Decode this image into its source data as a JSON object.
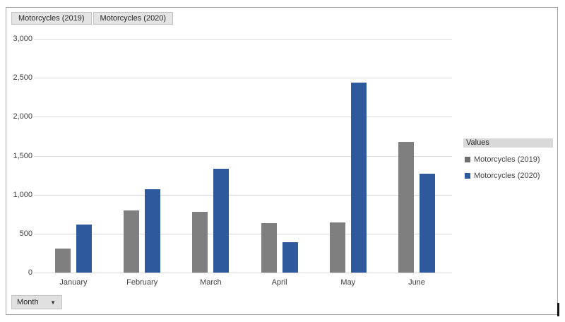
{
  "chart_data": {
    "type": "bar",
    "title": "",
    "categories": [
      "January",
      "February",
      "March",
      "April",
      "May",
      "June"
    ],
    "series": [
      {
        "name": "Motorcycles (2019)",
        "color": "#7f7f7f",
        "values": [
          310,
          800,
          780,
          630,
          640,
          1680
        ]
      },
      {
        "name": "Motorcycles (2020)",
        "color": "#2e5a9d",
        "values": [
          620,
          1070,
          1330,
          390,
          2440,
          1270
        ]
      }
    ],
    "xlabel": "",
    "ylabel": "",
    "ylim": [
      0,
      3000
    ],
    "ytick_step": 500,
    "ytick_labels": [
      "0",
      "500",
      "1,000",
      "1,500",
      "2,000",
      "2,500",
      "3,000"
    ],
    "grid": true,
    "legend_position": "right"
  },
  "field_buttons": [
    {
      "label": "Motorcycles (2019)"
    },
    {
      "label": "Motorcycles (2020)"
    }
  ],
  "legend": {
    "header": "Values",
    "items": [
      {
        "label": "Motorcycles (2019)",
        "color": "#6e6e6e"
      },
      {
        "label": "Motorcycles (2020)",
        "color": "#2e5a9d"
      }
    ]
  },
  "axis_field_button": {
    "label": "Month",
    "arrow_icon": "▼"
  },
  "colors": {
    "series_2019": "#7f7f7f",
    "series_2020": "#2e5a9d",
    "gridline": "#d9d9d9",
    "chart_border": "#a6a6a6",
    "button_bg": "#e4e4e4",
    "legend_header_bg": "#d9d9d9"
  }
}
